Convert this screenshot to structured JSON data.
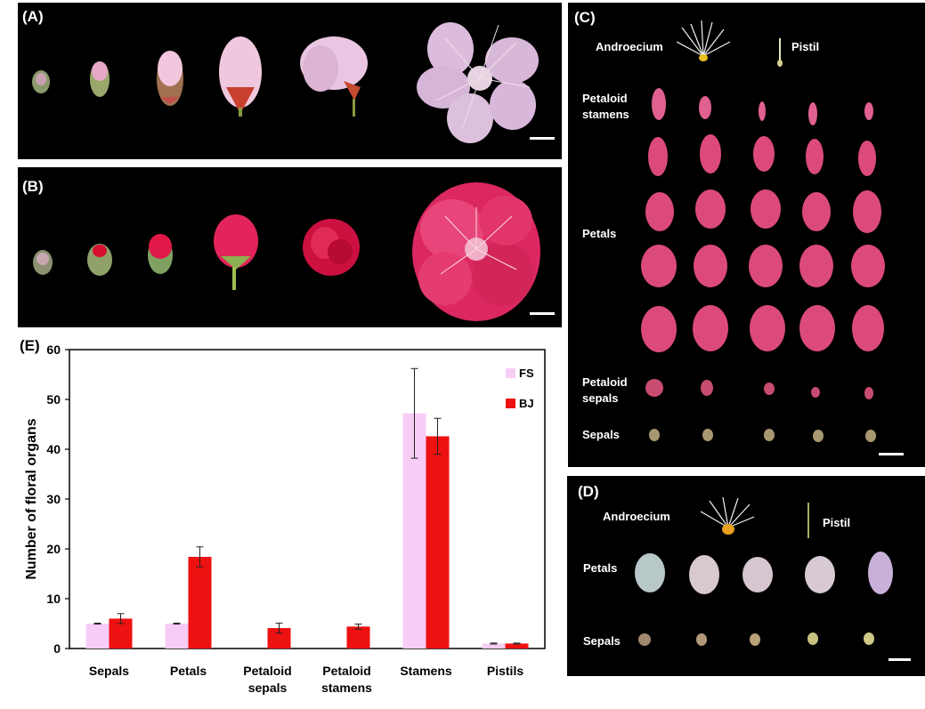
{
  "panels": {
    "A": {
      "label": "(A)"
    },
    "B": {
      "label": "(B)"
    },
    "C": {
      "label": "(C)",
      "androecium": "Androecium",
      "pistil": "Pistil",
      "petaloid_stamens_1": "Petaloid",
      "petaloid_stamens_2": "stamens",
      "petals": "Petals",
      "petaloid_sepals_1": "Petaloid",
      "petaloid_sepals_2": "sepals",
      "sepals": "Sepals"
    },
    "D": {
      "label": "(D)",
      "androecium": "Androecium",
      "pistil": "Pistil",
      "petals": "Petals",
      "sepals": "Sepals"
    },
    "E": {
      "label": "(E)"
    }
  },
  "colors": {
    "fs": "#f7cdf5",
    "bj": "#ee1111"
  },
  "chart_data": {
    "type": "bar",
    "title": "",
    "xlabel": "",
    "ylabel": "Number of floral organs",
    "ylim": [
      0,
      60
    ],
    "yticks": [
      "0",
      "10",
      "20",
      "30",
      "40",
      "50",
      "60"
    ],
    "categories": [
      "Sepals",
      "Petals",
      "Petaloid sepals",
      "Petaloid stamens",
      "Stamens",
      "Pistils"
    ],
    "series": [
      {
        "name": "FS",
        "values": [
          5,
          5,
          0,
          0,
          47.2,
          1
        ],
        "errors": [
          0.1,
          0.1,
          0,
          0,
          9,
          0.1
        ]
      },
      {
        "name": "BJ",
        "values": [
          6,
          18.4,
          4.1,
          4.4,
          42.6,
          1
        ],
        "errors": [
          1,
          2,
          1,
          0.5,
          3.6,
          0.1
        ]
      }
    ],
    "legend": "top-right"
  }
}
